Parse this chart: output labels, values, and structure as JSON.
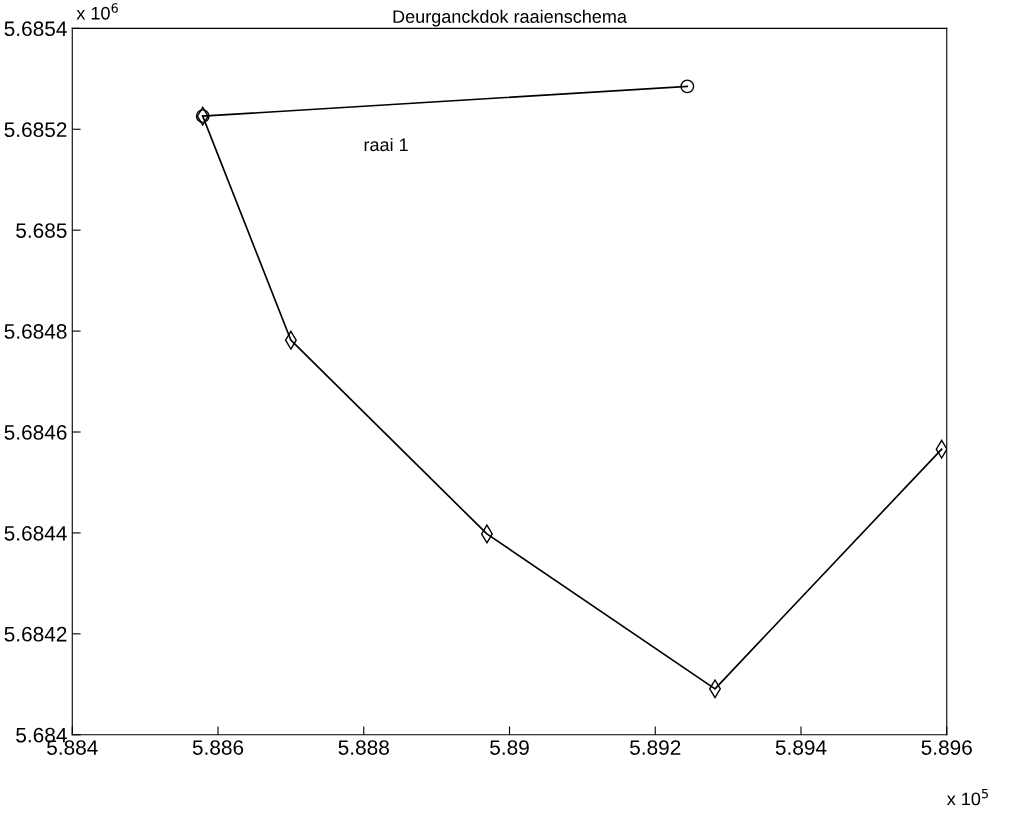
{
  "chart_data": {
    "type": "line",
    "title": "Deurganckdok raaienschema",
    "series": [
      {
        "x": [
          5.89244,
          5.88579
        ],
        "values": [
          5.685285,
          5.685226
        ],
        "color": "#000000",
        "marker": "circle"
      },
      {
        "x": [
          5.88579,
          5.887,
          5.88969,
          5.89282,
          5.89593
        ],
        "values": [
          5.685226,
          5.684782,
          5.684398,
          5.684091,
          5.684566
        ],
        "color": "#000000",
        "marker": "diamond"
      }
    ],
    "annotations": [
      "raai 1",
      "x 10$^{6}$",
      "x 10$^{5}$"
    ],
    "xlim": [
      5.884,
      5.896
    ],
    "xticks": [
      5.884,
      5.886,
      5.888,
      5.89,
      5.892,
      5.894,
      5.896
    ],
    "ylim": [
      5.684,
      5.6854
    ],
    "yticks": [
      5.684,
      5.6842,
      5.6844,
      5.6846,
      5.6848,
      5.685,
      5.6852,
      5.6854
    ],
    "grid": false,
    "legend": false,
    "line_style": "solid"
  }
}
